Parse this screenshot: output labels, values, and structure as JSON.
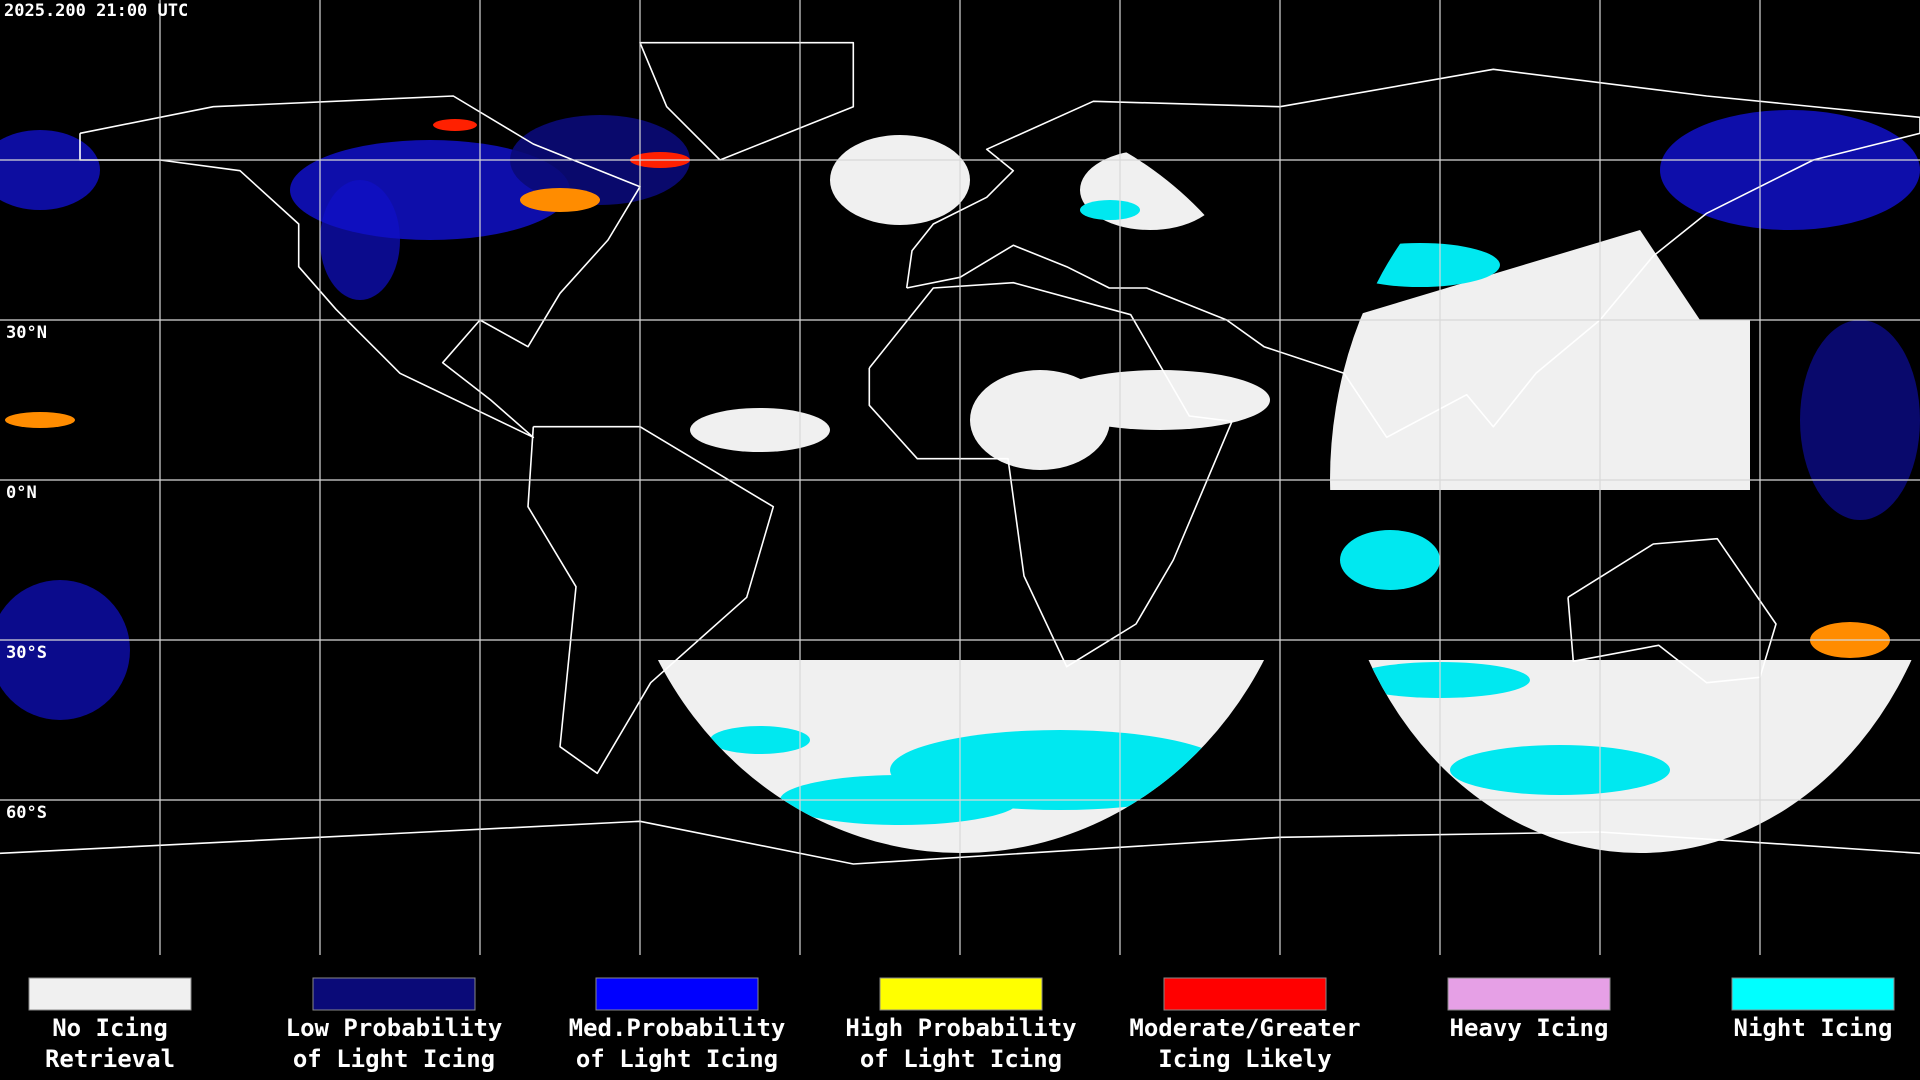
{
  "timestamp": "2025.200 21:00 UTC",
  "map": {
    "lat_labels": [
      "30°N",
      "0°N",
      "30°S",
      "60°S"
    ]
  },
  "legend": [
    {
      "lines": [
        "No Icing",
        "Retrieval"
      ],
      "color": "#f0f0f0"
    },
    {
      "lines": [
        "Low Probability",
        "of Light Icing"
      ],
      "color": "#0a0a78"
    },
    {
      "lines": [
        "Med.Probability",
        "of Light Icing"
      ],
      "color": "#0000ff"
    },
    {
      "lines": [
        "High Probability",
        "of Light Icing"
      ],
      "color": "#ffff00"
    },
    {
      "lines": [
        "Moderate/Greater",
        "Icing Likely"
      ],
      "color": "#ff0000"
    },
    {
      "lines": [
        "Heavy Icing"
      ],
      "color": "#e6a0e6"
    },
    {
      "lines": [
        "Night Icing"
      ],
      "color": "#00ffff"
    }
  ]
}
